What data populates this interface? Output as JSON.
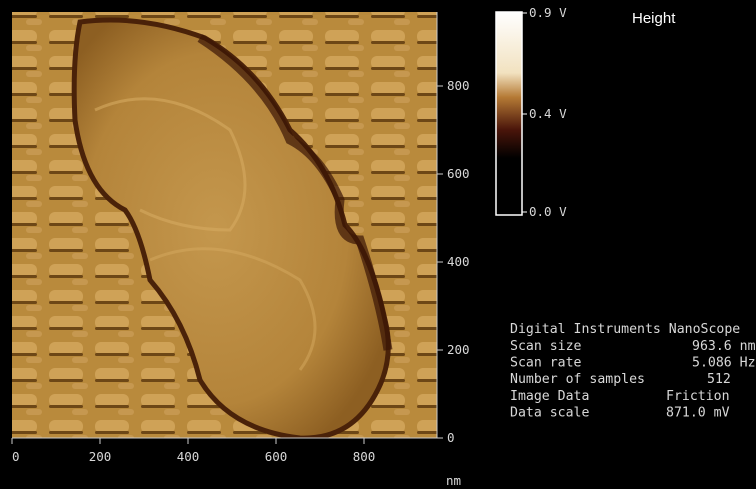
{
  "image": {
    "x_ticks": [
      "0",
      "200",
      "400",
      "600",
      "800"
    ],
    "x_unit": "nm",
    "y_ticks": [
      "0",
      "200",
      "400",
      "600",
      "800"
    ]
  },
  "colorbar": {
    "title": "Height",
    "labels": [
      "0.9 V",
      "0.4 V",
      "0.0 V"
    ]
  },
  "info": {
    "header": "Digital Instruments NanoScope",
    "rows": [
      [
        "Scan size",
        "963.6 nm"
      ],
      [
        "Scan rate",
        "5.086 Hz"
      ],
      [
        "Number of samples",
        "512"
      ],
      [
        "Image Data",
        "Friction"
      ],
      [
        "Data scale",
        "871.0 mV"
      ]
    ]
  }
}
